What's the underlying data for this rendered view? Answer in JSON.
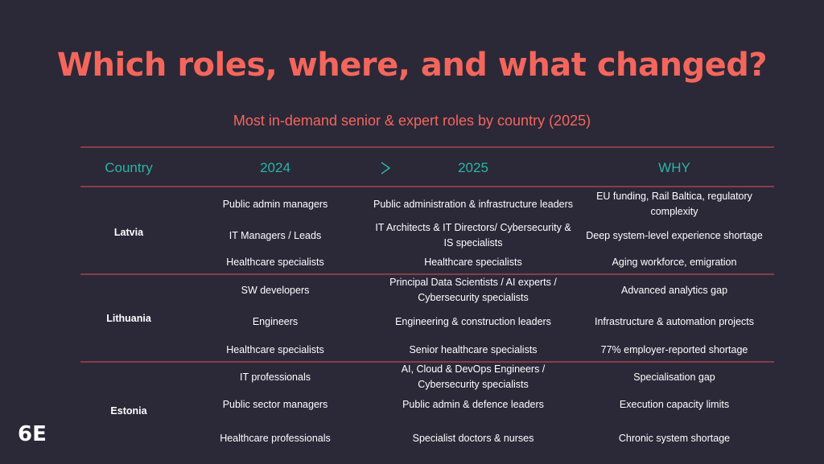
{
  "title": "Which roles, where, and what changed?",
  "subtitle": "Most in-demand senior & expert roles by country (2025)",
  "logo": "6E",
  "table": {
    "header": [
      "Country",
      "2024",
      "2025",
      "WHY"
    ],
    "groups": [
      {
        "country": "Latvia",
        "rows": [
          [
            "Public admin managers",
            "Public administration & infrastructure leaders",
            "EU funding, Rail Baltica, regulatory complexity"
          ],
          [
            "IT Managers / Leads",
            "IT Architects & IT Directors/ Cybersecurity & IS specialists",
            "Deep system-level experience shortage"
          ],
          [
            "Healthcare specialists",
            "Healthcare specialists",
            "Aging workforce, emigration"
          ]
        ]
      },
      {
        "country": "Lithuania",
        "rows": [
          [
            "SW developers",
            "Principal Data Scientists / AI experts / Cybersecurity specialists",
            "Advanced analytics gap"
          ],
          [
            "Engineers",
            "Engineering & construction leaders",
            "Infrastructure & automation projects"
          ],
          [
            "Healthcare specialists",
            "Senior healthcare specialists",
            "77% employer-reported shortage"
          ]
        ]
      },
      {
        "country": "Estonia",
        "rows": [
          [
            "IT professionals",
            "AI, Cloud & DevOps Engineers / Cybersecurity specialists",
            "Specialisation gap"
          ],
          [
            "Public sector managers",
            "Public admin & defence leaders",
            "Execution capacity limits"
          ],
          [
            "Healthcare professionals",
            "Specialist doctors & nurses",
            "Chronic system shortage"
          ]
        ]
      }
    ]
  }
}
